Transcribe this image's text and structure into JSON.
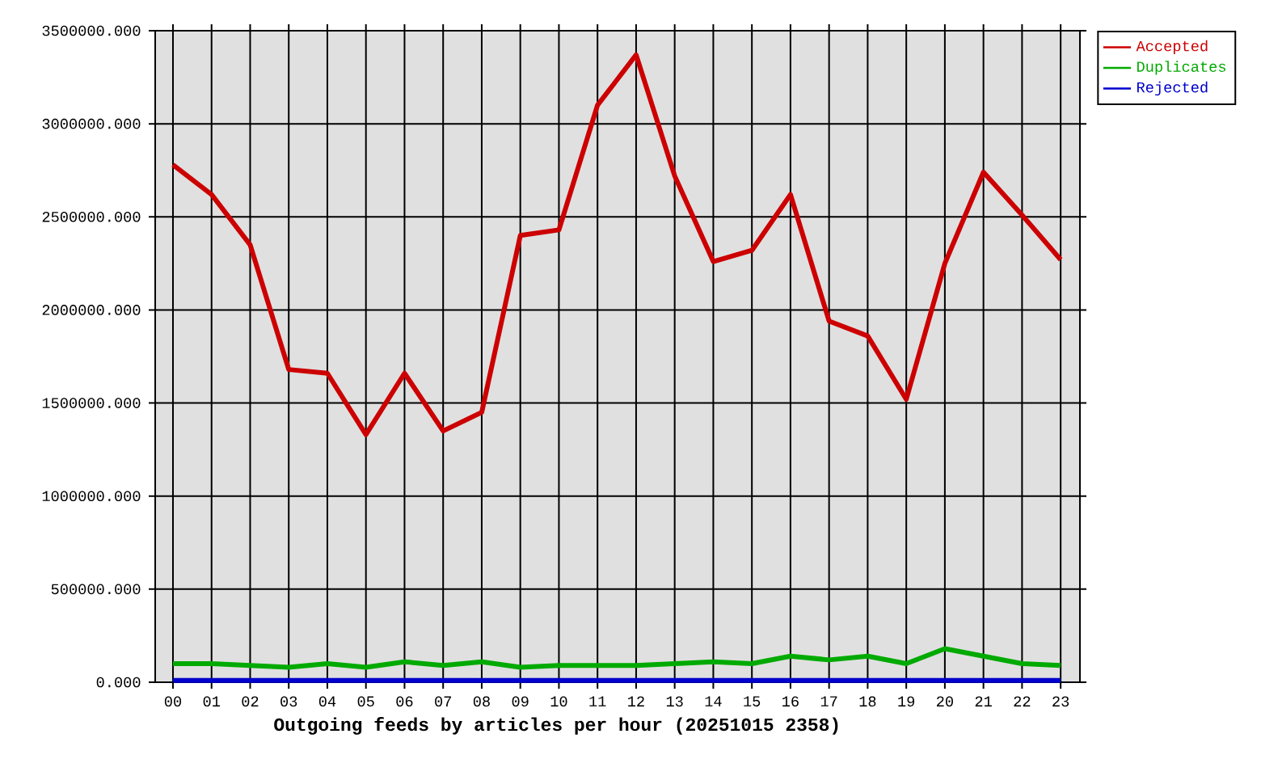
{
  "chart_data": {
    "type": "line",
    "xlabel": "Outgoing feeds by articles per hour (20251015 2358)",
    "categories": [
      "00",
      "01",
      "02",
      "03",
      "04",
      "05",
      "06",
      "07",
      "08",
      "09",
      "10",
      "11",
      "12",
      "13",
      "14",
      "15",
      "16",
      "17",
      "18",
      "19",
      "20",
      "21",
      "22",
      "23"
    ],
    "series": [
      {
        "name": "Accepted",
        "color": "#cc0000",
        "values": [
          2780000,
          2620000,
          2350000,
          1680000,
          1660000,
          1330000,
          1660000,
          1350000,
          1450000,
          2400000,
          2430000,
          3100000,
          3370000,
          2720000,
          2260000,
          2320000,
          2620000,
          1940000,
          1860000,
          1520000,
          2250000,
          2740000,
          2510000,
          2270000
        ]
      },
      {
        "name": "Duplicates",
        "color": "#00aa00",
        "values": [
          100000,
          100000,
          90000,
          80000,
          100000,
          80000,
          110000,
          90000,
          110000,
          80000,
          90000,
          90000,
          90000,
          100000,
          110000,
          100000,
          140000,
          120000,
          140000,
          100000,
          180000,
          140000,
          100000,
          90000
        ]
      },
      {
        "name": "Rejected",
        "color": "#0000cc",
        "values": [
          10000,
          10000,
          10000,
          10000,
          10000,
          10000,
          10000,
          10000,
          10000,
          10000,
          10000,
          10000,
          10000,
          10000,
          10000,
          10000,
          10000,
          10000,
          10000,
          10000,
          10000,
          10000,
          10000,
          10000
        ]
      }
    ],
    "ylim": [
      0,
      3500000
    ],
    "yticks": [
      {
        "value": 0,
        "label": "0.000"
      },
      {
        "value": 500000,
        "label": "500000.000"
      },
      {
        "value": 1000000,
        "label": "1000000.000"
      },
      {
        "value": 1500000,
        "label": "1500000.000"
      },
      {
        "value": 2000000,
        "label": "2000000.000"
      },
      {
        "value": 2500000,
        "label": "2500000.000"
      },
      {
        "value": 3000000,
        "label": "3000000.000"
      },
      {
        "value": 3500000,
        "label": "3500000.000"
      }
    ],
    "grid": true,
    "legend": "top right"
  }
}
